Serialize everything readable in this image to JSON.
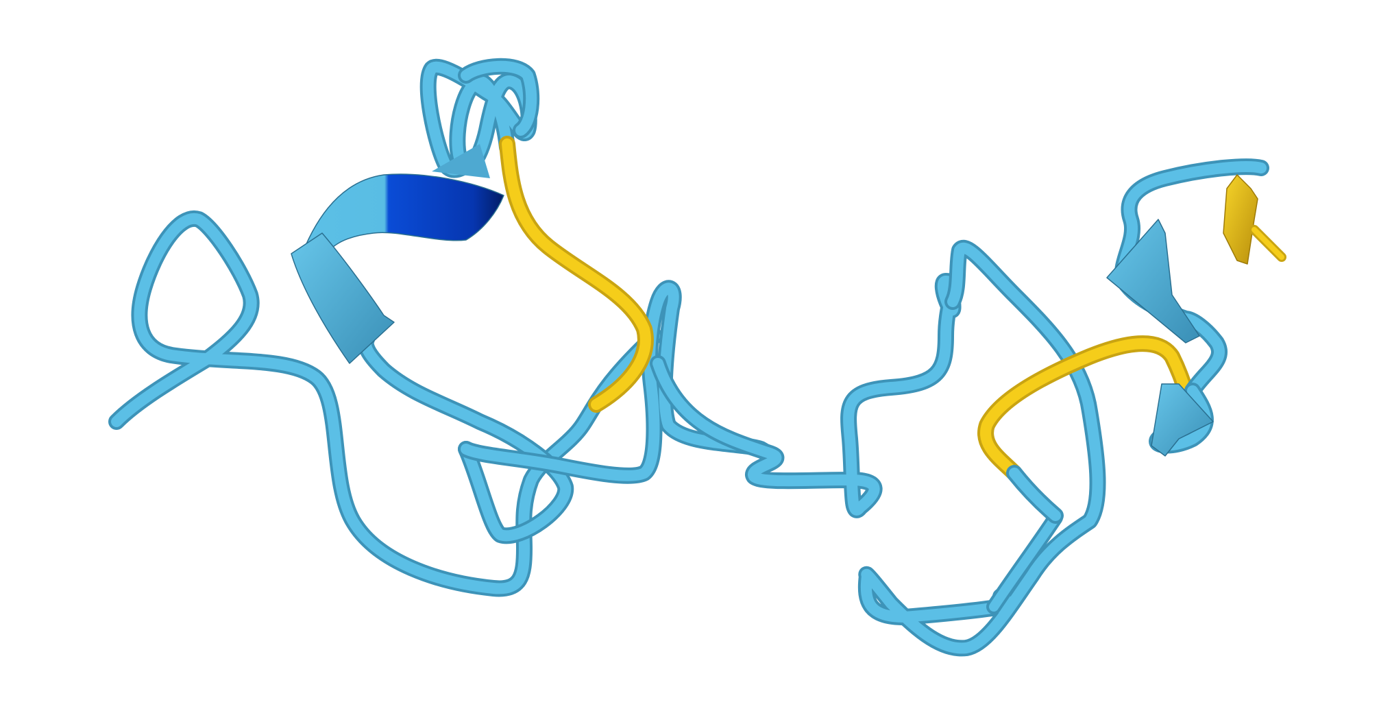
{
  "scene": {
    "kind": "protein cartoon render",
    "background": "#ffffff",
    "colors": {
      "coil": "#56b6dd",
      "coil_shadow": "#3d93b8",
      "helix_dark": "#0a3fc8",
      "highlight": "#f5cd1a",
      "highlight_shadow": "#c9a412"
    }
  }
}
